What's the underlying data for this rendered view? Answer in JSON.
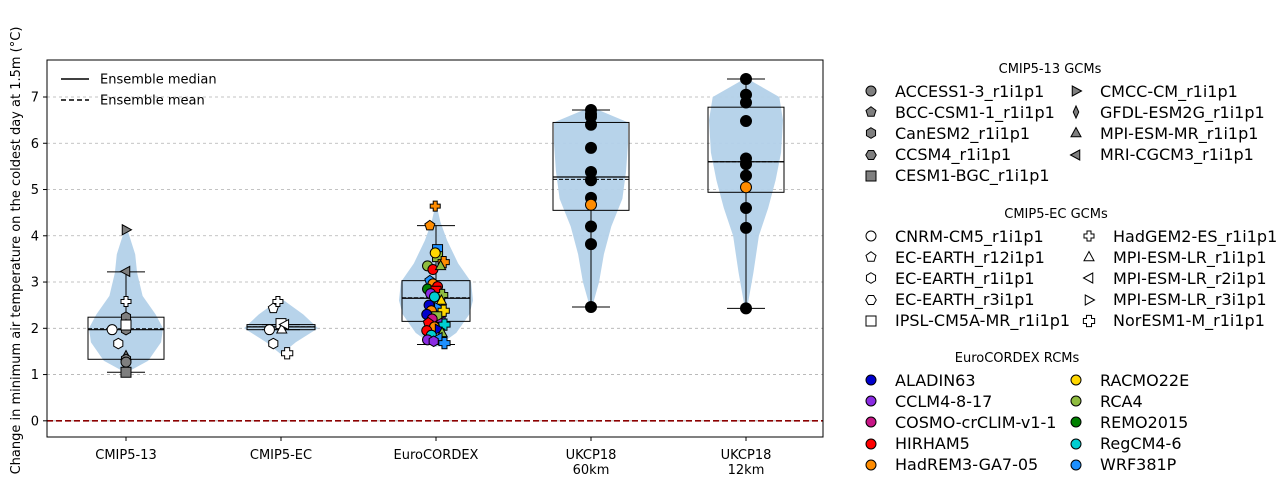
{
  "chart_data": {
    "type": "violin-box-scatter",
    "ylabel": "Change in minimum air temperature on the coldest day at 1.5m (°C)",
    "ylim": [
      -0.35,
      7.8
    ],
    "yticks": [
      0,
      1,
      2,
      3,
      4,
      5,
      6,
      7
    ],
    "grid": "horizontal dashed",
    "reference_line": {
      "y": 0,
      "color": "#8b0000",
      "style": "dashed"
    },
    "categories": [
      "CMIP5-13",
      "CMIP5-EC",
      "EuroCORDEX",
      "UKCP18\n60km",
      "UKCP18\n12km"
    ],
    "category_lines": [
      [
        "CMIP5-13"
      ],
      [
        "CMIP5-EC"
      ],
      [
        "EuroCORDEX"
      ],
      [
        "UKCP18",
        "60km"
      ],
      [
        "UKCP18",
        "12km"
      ]
    ],
    "boxes": [
      {
        "q1": 1.33,
        "median": 1.97,
        "mean": 1.99,
        "q3": 2.24,
        "whislo": 1.05,
        "whishi": 3.22
      },
      {
        "q1": 1.97,
        "median": 2.03,
        "mean": 2.03,
        "q3": 2.08,
        "whislo": 1.97,
        "whishi": 2.08
      },
      {
        "q1": 2.15,
        "median": 2.65,
        "mean": 2.66,
        "q3": 3.03,
        "whislo": 1.65,
        "whishi": 4.22
      },
      {
        "q1": 4.55,
        "median": 5.27,
        "mean": 5.22,
        "q3": 6.45,
        "whislo": 2.46,
        "whishi": 6.72
      },
      {
        "q1": 4.94,
        "median": 5.6,
        "mean": 5.6,
        "q3": 6.78,
        "whislo": 2.43,
        "whishi": 7.39
      }
    ],
    "violins": [
      {
        "points": [
          [
            1.05,
            0.03
          ],
          [
            1.3,
            0.6
          ],
          [
            1.7,
            0.95
          ],
          [
            2.0,
            1.0
          ],
          [
            2.3,
            0.8
          ],
          [
            2.7,
            0.45
          ],
          [
            3.2,
            0.3
          ],
          [
            3.6,
            0.25
          ],
          [
            4.15,
            0.03
          ]
        ]
      },
      {
        "points": [
          [
            1.45,
            0.02
          ],
          [
            1.7,
            0.4
          ],
          [
            2.0,
            1.0
          ],
          [
            2.3,
            0.6
          ],
          [
            2.6,
            0.08
          ]
        ]
      },
      {
        "points": [
          [
            1.6,
            0.03
          ],
          [
            1.9,
            0.55
          ],
          [
            2.3,
            0.9
          ],
          [
            2.6,
            1.0
          ],
          [
            3.0,
            0.95
          ],
          [
            3.4,
            0.6
          ],
          [
            3.9,
            0.3
          ],
          [
            4.3,
            0.12
          ],
          [
            4.65,
            0.02
          ]
        ]
      },
      {
        "points": [
          [
            2.46,
            0.03
          ],
          [
            3.0,
            0.22
          ],
          [
            3.6,
            0.35
          ],
          [
            4.2,
            0.55
          ],
          [
            4.8,
            0.85
          ],
          [
            5.4,
            0.95
          ],
          [
            6.0,
            1.0
          ],
          [
            6.45,
            1.0
          ],
          [
            6.72,
            0.2
          ]
        ]
      },
      {
        "points": [
          [
            2.43,
            0.03
          ],
          [
            3.2,
            0.2
          ],
          [
            4.0,
            0.35
          ],
          [
            4.6,
            0.6
          ],
          [
            5.2,
            0.8
          ],
          [
            5.8,
            0.95
          ],
          [
            6.5,
            1.0
          ],
          [
            7.0,
            0.9
          ],
          [
            7.39,
            0.05
          ]
        ]
      }
    ],
    "series": [
      {
        "group": "CMIP5-13",
        "points": [
          {
            "dx": 0,
            "y": 4.13,
            "marker": "tri-right",
            "fill": "#7f7f7f"
          },
          {
            "dx": 0,
            "y": 3.23,
            "marker": "tri-left",
            "fill": "#7f7f7f"
          },
          {
            "dx": 0,
            "y": 2.24,
            "marker": "hexagon",
            "fill": "#7f7f7f"
          },
          {
            "dx": 0,
            "y": 2.07,
            "marker": "triangle",
            "fill": "#7f7f7f"
          },
          {
            "dx": 0,
            "y": 1.97,
            "marker": "hexagon",
            "fill": "#7f7f7f"
          },
          {
            "dx": 0,
            "y": 1.4,
            "marker": "triangle",
            "fill": "#7f7f7f"
          },
          {
            "dx": 0,
            "y": 1.33,
            "marker": "hexagon",
            "fill": "#7f7f7f"
          },
          {
            "dx": 0,
            "y": 1.27,
            "marker": "circle",
            "fill": "#7f7f7f"
          },
          {
            "dx": 0,
            "y": 1.05,
            "marker": "square",
            "fill": "#7f7f7f"
          },
          {
            "dx": 0,
            "y": 2.58,
            "marker": "plus",
            "fill": "#ffffff"
          },
          {
            "dx": 0,
            "y": 2.07,
            "marker": "square",
            "fill": "#ffffff"
          },
          {
            "dx": -0.18,
            "y": 1.97,
            "marker": "circle",
            "fill": "#ffffff"
          },
          {
            "dx": -0.1,
            "y": 1.67,
            "marker": "hexagon",
            "fill": "#ffffff"
          }
        ]
      },
      {
        "group": "CMIP5-EC",
        "points": [
          {
            "dx": -0.1,
            "y": 2.43,
            "marker": "pentagon",
            "fill": "#ffffff"
          },
          {
            "dx": -0.04,
            "y": 2.58,
            "marker": "plus",
            "fill": "#ffffff"
          },
          {
            "dx": -0.15,
            "y": 1.97,
            "marker": "circle",
            "fill": "#ffffff"
          },
          {
            "dx": -0.1,
            "y": 1.67,
            "marker": "hexagon",
            "fill": "#ffffff"
          },
          {
            "dx": 0.0,
            "y": 2.1,
            "marker": "square",
            "fill": "#ffffff"
          },
          {
            "dx": 0.01,
            "y": 1.98,
            "marker": "triangle",
            "fill": "#ffffff"
          },
          {
            "dx": 0.05,
            "y": 2.08,
            "marker": "tri-left",
            "fill": "#ffffff"
          },
          {
            "dx": 0.08,
            "y": 1.46,
            "marker": "cross",
            "fill": "#ffffff"
          }
        ]
      },
      {
        "group": "EuroCORDEX",
        "points": [
          {
            "dx": -0.08,
            "y": 4.22,
            "marker": "pentagon",
            "fill": "#ff8c00"
          },
          {
            "dx": -0.01,
            "y": 4.64,
            "marker": "plus",
            "fill": "#ff8c00"
          },
          {
            "dx": 0.02,
            "y": 3.7,
            "marker": "square",
            "fill": "#1e90ff"
          },
          {
            "dx": 0.02,
            "y": 3.55,
            "marker": "square",
            "fill": "#8fbc3f"
          },
          {
            "dx": 0.1,
            "y": 3.43,
            "marker": "cross",
            "fill": "#ff8c00"
          },
          {
            "dx": -0.01,
            "y": 3.63,
            "marker": "circle",
            "fill": "#ffd700"
          },
          {
            "dx": -0.11,
            "y": 3.35,
            "marker": "circle",
            "fill": "#8fbc3f"
          },
          {
            "dx": -0.04,
            "y": 3.27,
            "marker": "circle",
            "fill": "#ff0000"
          },
          {
            "dx": 0.06,
            "y": 3.35,
            "marker": "triangle",
            "fill": "#8fbc3f"
          },
          {
            "dx": -0.08,
            "y": 3.03,
            "marker": "pentagon",
            "fill": "#1e90ff"
          },
          {
            "dx": -0.04,
            "y": 2.96,
            "marker": "circle",
            "fill": "#ff8c00"
          },
          {
            "dx": 0.02,
            "y": 2.9,
            "marker": "circle",
            "fill": "#ff0000"
          },
          {
            "dx": -0.11,
            "y": 2.85,
            "marker": "circle",
            "fill": "#008000"
          },
          {
            "dx": 0.0,
            "y": 2.8,
            "marker": "square",
            "fill": "#ff0000"
          },
          {
            "dx": -0.07,
            "y": 2.75,
            "marker": "circle",
            "fill": "#8a2be2"
          },
          {
            "dx": 0.08,
            "y": 2.72,
            "marker": "cross",
            "fill": "#8fbc3f"
          },
          {
            "dx": -0.02,
            "y": 2.68,
            "marker": "circle",
            "fill": "#00ced1"
          },
          {
            "dx": 0.07,
            "y": 2.6,
            "marker": "triangle",
            "fill": "#ffd700"
          },
          {
            "dx": -0.09,
            "y": 2.5,
            "marker": "circle",
            "fill": "#0000cd"
          },
          {
            "dx": 0.03,
            "y": 2.45,
            "marker": "tri-right",
            "fill": "#1e90ff"
          },
          {
            "dx": -0.06,
            "y": 2.38,
            "marker": "circle",
            "fill": "#ff8c00"
          },
          {
            "dx": 0.1,
            "y": 2.38,
            "marker": "cross",
            "fill": "#ffd700"
          },
          {
            "dx": -0.12,
            "y": 2.3,
            "marker": "circle",
            "fill": "#0000cd"
          },
          {
            "dx": 0.01,
            "y": 2.25,
            "marker": "square",
            "fill": "#8fbc3f"
          },
          {
            "dx": -0.05,
            "y": 2.2,
            "marker": "circle",
            "fill": "#c71585"
          },
          {
            "dx": 0.07,
            "y": 2.15,
            "marker": "tri-left",
            "fill": "#8a2be2"
          },
          {
            "dx": -0.1,
            "y": 2.12,
            "marker": "pentagon",
            "fill": "#ff0000"
          },
          {
            "dx": 0.11,
            "y": 2.08,
            "marker": "cross",
            "fill": "#00ced1"
          },
          {
            "dx": -0.02,
            "y": 2.03,
            "marker": "circle",
            "fill": "#ff8c00"
          },
          {
            "dx": 0.04,
            "y": 1.98,
            "marker": "tri-right",
            "fill": "#0000cd"
          },
          {
            "dx": -0.12,
            "y": 1.95,
            "marker": "circle",
            "fill": "#ff0000"
          },
          {
            "dx": 0.08,
            "y": 1.9,
            "marker": "triangle",
            "fill": "#8fbc3f"
          },
          {
            "dx": -0.06,
            "y": 1.85,
            "marker": "circle",
            "fill": "#00ced1"
          },
          {
            "dx": 0.03,
            "y": 1.8,
            "marker": "tri-left",
            "fill": "#1e90ff"
          },
          {
            "dx": -0.11,
            "y": 1.75,
            "marker": "circle",
            "fill": "#8a2be2"
          },
          {
            "dx": -0.03,
            "y": 1.72,
            "marker": "hexagon",
            "fill": "#8a2be2"
          },
          {
            "dx": 0.11,
            "y": 1.68,
            "marker": "cross",
            "fill": "#1e90ff"
          }
        ]
      },
      {
        "group": "UKCP18 60km",
        "points": [
          {
            "dx": 0,
            "y": 6.72,
            "marker": "circle",
            "fill": "#000000"
          },
          {
            "dx": 0,
            "y": 6.63,
            "marker": "circle",
            "fill": "#000000"
          },
          {
            "dx": 0,
            "y": 6.57,
            "marker": "circle",
            "fill": "#000000"
          },
          {
            "dx": 0,
            "y": 6.4,
            "marker": "circle",
            "fill": "#000000"
          },
          {
            "dx": 0,
            "y": 5.9,
            "marker": "circle",
            "fill": "#000000"
          },
          {
            "dx": 0,
            "y": 5.38,
            "marker": "circle",
            "fill": "#000000"
          },
          {
            "dx": 0,
            "y": 5.2,
            "marker": "circle",
            "fill": "#000000"
          },
          {
            "dx": 0,
            "y": 4.82,
            "marker": "circle",
            "fill": "#000000"
          },
          {
            "dx": 0,
            "y": 4.67,
            "marker": "circle",
            "fill": "#ff8c00"
          },
          {
            "dx": 0,
            "y": 4.2,
            "marker": "circle",
            "fill": "#000000"
          },
          {
            "dx": 0,
            "y": 3.82,
            "marker": "circle",
            "fill": "#000000"
          },
          {
            "dx": 0,
            "y": 2.46,
            "marker": "circle",
            "fill": "#000000"
          }
        ]
      },
      {
        "group": "UKCP18 12km",
        "points": [
          {
            "dx": 0,
            "y": 7.39,
            "marker": "circle",
            "fill": "#000000"
          },
          {
            "dx": 0,
            "y": 7.05,
            "marker": "circle",
            "fill": "#000000"
          },
          {
            "dx": 0,
            "y": 6.88,
            "marker": "circle",
            "fill": "#000000"
          },
          {
            "dx": 0,
            "y": 6.48,
            "marker": "circle",
            "fill": "#000000"
          },
          {
            "dx": 0,
            "y": 5.67,
            "marker": "circle",
            "fill": "#000000"
          },
          {
            "dx": 0,
            "y": 5.55,
            "marker": "circle",
            "fill": "#000000"
          },
          {
            "dx": 0,
            "y": 5.3,
            "marker": "circle",
            "fill": "#000000"
          },
          {
            "dx": 0,
            "y": 5.05,
            "marker": "circle",
            "fill": "#ff8c00"
          },
          {
            "dx": 0,
            "y": 4.6,
            "marker": "circle",
            "fill": "#000000"
          },
          {
            "dx": 0,
            "y": 4.17,
            "marker": "circle",
            "fill": "#000000"
          },
          {
            "dx": 0,
            "y": 2.43,
            "marker": "circle",
            "fill": "#000000"
          }
        ]
      }
    ],
    "inner_legend": [
      {
        "label": "Ensemble median",
        "style": "solid"
      },
      {
        "label": "Ensemble mean",
        "style": "dashed"
      }
    ],
    "legends": [
      {
        "title": "CMIP5-13 GCMs",
        "fill": "#7f7f7f",
        "columns": [
          [
            {
              "label": "ACCESS1-3_r1i1p1",
              "marker": "circle"
            },
            {
              "label": "BCC-CSM1-1_r1i1p1",
              "marker": "pentagon"
            },
            {
              "label": "CanESM2_r1i1p1",
              "marker": "hexagon"
            },
            {
              "label": "CCSM4_r1i1p1",
              "marker": "hexagon2"
            },
            {
              "label": "CESM1-BGC_r1i1p1",
              "marker": "square"
            }
          ],
          [
            {
              "label": "CMCC-CM_r1i1p1",
              "marker": "tri-right"
            },
            {
              "label": "GFDL-ESM2G_r1i1p1",
              "marker": "diamond-thin"
            },
            {
              "label": "MPI-ESM-MR_r1i1p1",
              "marker": "triangle"
            },
            {
              "label": "MRI-CGCM3_r1i1p1",
              "marker": "tri-left"
            }
          ]
        ]
      },
      {
        "title": "CMIP5-EC GCMs",
        "fill": "#ffffff",
        "columns": [
          [
            {
              "label": "CNRM-CM5_r1i1p1",
              "marker": "circle"
            },
            {
              "label": "EC-EARTH_r12i1p1",
              "marker": "pentagon"
            },
            {
              "label": "EC-EARTH_r1i1p1",
              "marker": "hexagon"
            },
            {
              "label": "EC-EARTH_r3i1p1",
              "marker": "hexagon2"
            },
            {
              "label": "IPSL-CM5A-MR_r1i1p1",
              "marker": "square"
            }
          ],
          [
            {
              "label": "HadGEM2-ES_r1i1p1",
              "marker": "plus"
            },
            {
              "label": "MPI-ESM-LR_r1i1p1",
              "marker": "triangle"
            },
            {
              "label": "MPI-ESM-LR_r2i1p1",
              "marker": "tri-left"
            },
            {
              "label": "MPI-ESM-LR_r3i1p1",
              "marker": "tri-right"
            },
            {
              "label": "NorESM1-M_r1i1p1",
              "marker": "cross"
            }
          ]
        ]
      },
      {
        "title": "EuroCORDEX RCMs",
        "fill": null,
        "columns": [
          [
            {
              "label": "ALADIN63",
              "marker": "circle",
              "color": "#0000cd"
            },
            {
              "label": "CCLM4-8-17",
              "marker": "circle",
              "color": "#8a2be2"
            },
            {
              "label": "COSMO-crCLIM-v1-1",
              "marker": "circle",
              "color": "#c71585"
            },
            {
              "label": "HIRHAM5",
              "marker": "circle",
              "color": "#ff0000"
            },
            {
              "label": "HadREM3-GA7-05",
              "marker": "circle",
              "color": "#ff8c00"
            }
          ],
          [
            {
              "label": "RACMO22E",
              "marker": "circle",
              "color": "#ffd700"
            },
            {
              "label": "RCA4",
              "marker": "circle",
              "color": "#8fbc3f"
            },
            {
              "label": "REMO2015",
              "marker": "circle",
              "color": "#008000"
            },
            {
              "label": "RegCM4-6",
              "marker": "circle",
              "color": "#00ced1"
            },
            {
              "label": "WRF381P",
              "marker": "circle",
              "color": "#1e90ff"
            }
          ]
        ]
      }
    ],
    "colors": {
      "violin": "#b3d1e9",
      "zero_line": "#8b0000",
      "grid": "#b0b0b0"
    }
  }
}
